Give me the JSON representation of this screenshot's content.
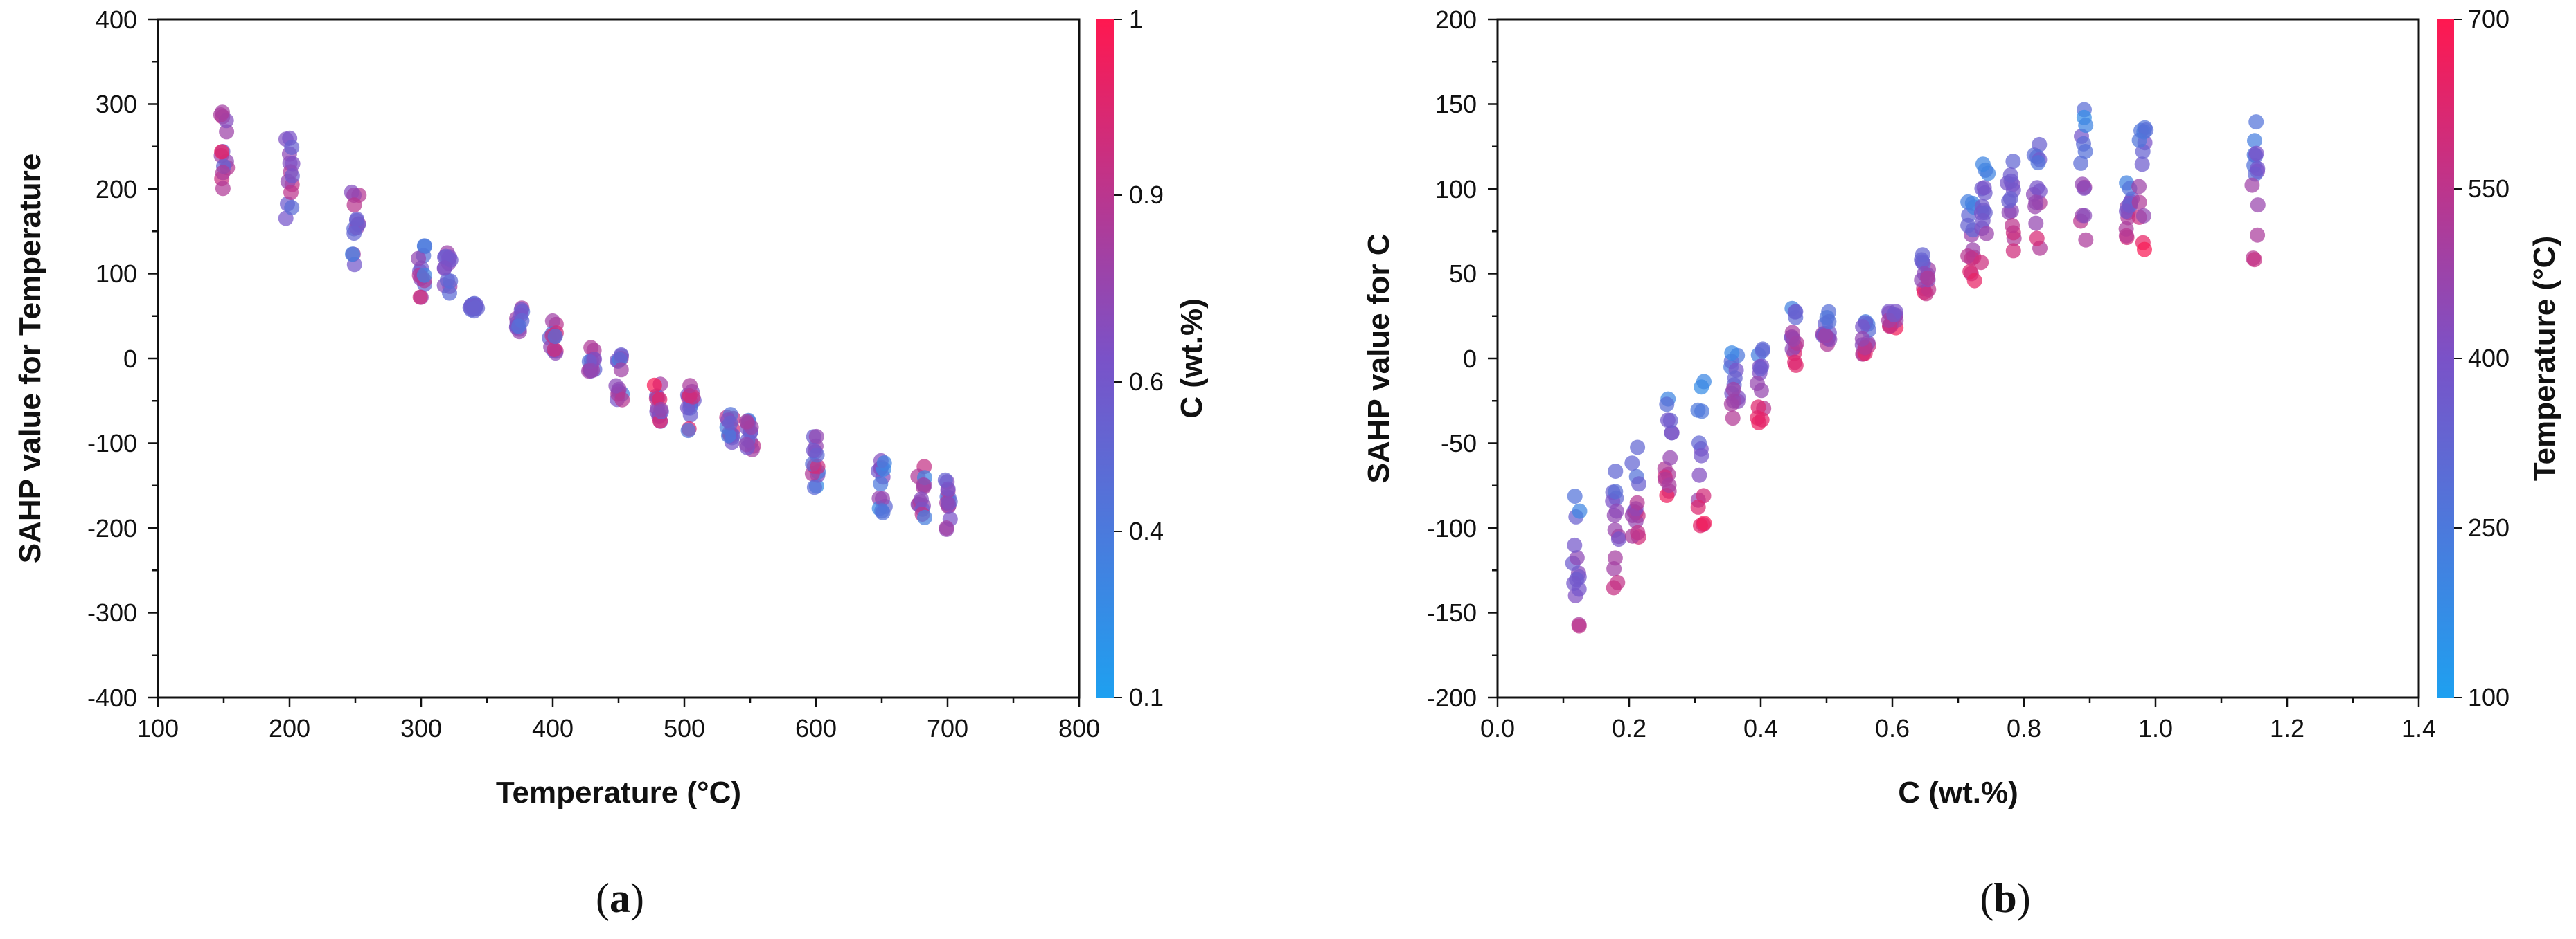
{
  "colors": {
    "low": "#1ea0f0",
    "high": "#ff1850",
    "axis": "#111111"
  },
  "chart_data": [
    {
      "type": "scatter",
      "caption_open": "(",
      "caption_letter": "a",
      "caption_close": ")",
      "xlabel": "Temperature (°C)",
      "ylabel": "SAHP value for Temperature",
      "xlim": [
        100,
        800
      ],
      "ylim": [
        -400,
        400
      ],
      "xticks": [
        "100",
        "200",
        "300",
        "400",
        "500",
        "600",
        "700",
        "800"
      ],
      "yticks": [
        "400",
        "300",
        "200",
        "100",
        "0",
        "-100",
        "-200",
        "-300",
        "-400"
      ],
      "colorbar": {
        "title": "C (wt.%)",
        "ticks": [
          "1",
          "0.9",
          "0.6",
          "0.4",
          "0.1"
        ],
        "range": [
          0.1,
          1
        ]
      },
      "clusters": [
        {
          "x": 150,
          "y0": 190,
          "y1": 305,
          "c0": 0.3,
          "c1": 1.0
        },
        {
          "x": 200,
          "y0": 150,
          "y1": 265,
          "c0": 0.25,
          "c1": 1.0
        },
        {
          "x": 250,
          "y0": 110,
          "y1": 210,
          "c0": 0.2,
          "c1": 0.95
        },
        {
          "x": 300,
          "y0": 70,
          "y1": 140,
          "c0": 0.15,
          "c1": 1.0
        },
        {
          "x": 320,
          "y0": 75,
          "y1": 125,
          "c0": 0.3,
          "c1": 0.8
        },
        {
          "x": 340,
          "y0": 55,
          "y1": 65,
          "c0": 0.4,
          "c1": 0.5
        },
        {
          "x": 375,
          "y0": 30,
          "y1": 60,
          "c0": 0.3,
          "c1": 0.9
        },
        {
          "x": 400,
          "y0": 5,
          "y1": 50,
          "c0": 0.2,
          "c1": 0.95
        },
        {
          "x": 430,
          "y0": -15,
          "y1": 15,
          "c0": 0.3,
          "c1": 0.9
        },
        {
          "x": 450,
          "y0": -50,
          "y1": 10,
          "c0": 0.2,
          "c1": 0.9
        },
        {
          "x": 480,
          "y0": -80,
          "y1": -30,
          "c0": 0.2,
          "c1": 1.0
        },
        {
          "x": 505,
          "y0": -90,
          "y1": -30,
          "c0": 0.2,
          "c1": 1.0
        },
        {
          "x": 535,
          "y0": -100,
          "y1": -60,
          "c0": 0.2,
          "c1": 0.95
        },
        {
          "x": 550,
          "y0": -110,
          "y1": -70,
          "c0": 0.3,
          "c1": 0.9
        },
        {
          "x": 600,
          "y0": -155,
          "y1": -85,
          "c0": 0.2,
          "c1": 1.0
        },
        {
          "x": 650,
          "y0": -185,
          "y1": -115,
          "c0": 0.2,
          "c1": 0.8
        },
        {
          "x": 680,
          "y0": -190,
          "y1": -125,
          "c0": 0.2,
          "c1": 0.9
        },
        {
          "x": 700,
          "y0": -205,
          "y1": -140,
          "c0": 0.2,
          "c1": 1.0
        }
      ]
    },
    {
      "type": "scatter",
      "caption_open": "(",
      "caption_letter": "b",
      "caption_close": ")",
      "xlabel": "C (wt.%)",
      "ylabel": "SAHP value for C",
      "xlim": [
        0,
        1.4
      ],
      "ylim": [
        -200,
        200
      ],
      "xticks": [
        "0.0",
        "0.2",
        "0.4",
        "0.6",
        "0.8",
        "1.0",
        "1.2",
        "1.4"
      ],
      "yticks": [
        "200",
        "150",
        "100",
        "50",
        "0",
        "-50",
        "-100",
        "-150",
        "-200"
      ],
      "colorbar": {
        "title": "Temperature (°C)",
        "ticks": [
          "700",
          "550",
          "400",
          "250",
          "100"
        ],
        "range": [
          100,
          700
        ]
      },
      "clusters": [
        {
          "x": 0.12,
          "y0": -165,
          "y1": -78,
          "c0": 150,
          "c1": 650
        },
        {
          "x": 0.18,
          "y0": -142,
          "y1": -62,
          "c0": 150,
          "c1": 700
        },
        {
          "x": 0.21,
          "y0": -110,
          "y1": -50,
          "c0": 150,
          "c1": 700
        },
        {
          "x": 0.26,
          "y0": -85,
          "y1": -22,
          "c0": 150,
          "c1": 700
        },
        {
          "x": 0.31,
          "y0": -100,
          "y1": -12,
          "c0": 150,
          "c1": 700
        },
        {
          "x": 0.36,
          "y0": -40,
          "y1": 5,
          "c0": 150,
          "c1": 650
        },
        {
          "x": 0.4,
          "y0": -38,
          "y1": 10,
          "c0": 150,
          "c1": 700
        },
        {
          "x": 0.45,
          "y0": -5,
          "y1": 35,
          "c0": 150,
          "c1": 700
        },
        {
          "x": 0.5,
          "y0": 5,
          "y1": 30,
          "c0": 150,
          "c1": 600
        },
        {
          "x": 0.56,
          "y0": 0,
          "y1": 25,
          "c0": 150,
          "c1": 700
        },
        {
          "x": 0.6,
          "y0": 18,
          "y1": 28,
          "c0": 300,
          "c1": 700
        },
        {
          "x": 0.65,
          "y0": 38,
          "y1": 62,
          "c0": 200,
          "c1": 700
        },
        {
          "x": 0.72,
          "y0": 45,
          "y1": 95,
          "c0": 150,
          "c1": 700
        },
        {
          "x": 0.74,
          "y0": 55,
          "y1": 118,
          "c0": 150,
          "c1": 700
        },
        {
          "x": 0.78,
          "y0": 58,
          "y1": 120,
          "c0": 150,
          "c1": 700
        },
        {
          "x": 0.82,
          "y0": 62,
          "y1": 135,
          "c0": 150,
          "c1": 700
        },
        {
          "x": 0.89,
          "y0": 62,
          "y1": 147,
          "c0": 150,
          "c1": 700
        },
        {
          "x": 0.96,
          "y0": 68,
          "y1": 105,
          "c0": 200,
          "c1": 700
        },
        {
          "x": 0.98,
          "y0": 62,
          "y1": 147,
          "c0": 150,
          "c1": 700
        },
        {
          "x": 1.15,
          "y0": 58,
          "y1": 140,
          "c0": 150,
          "c1": 700
        }
      ]
    }
  ]
}
